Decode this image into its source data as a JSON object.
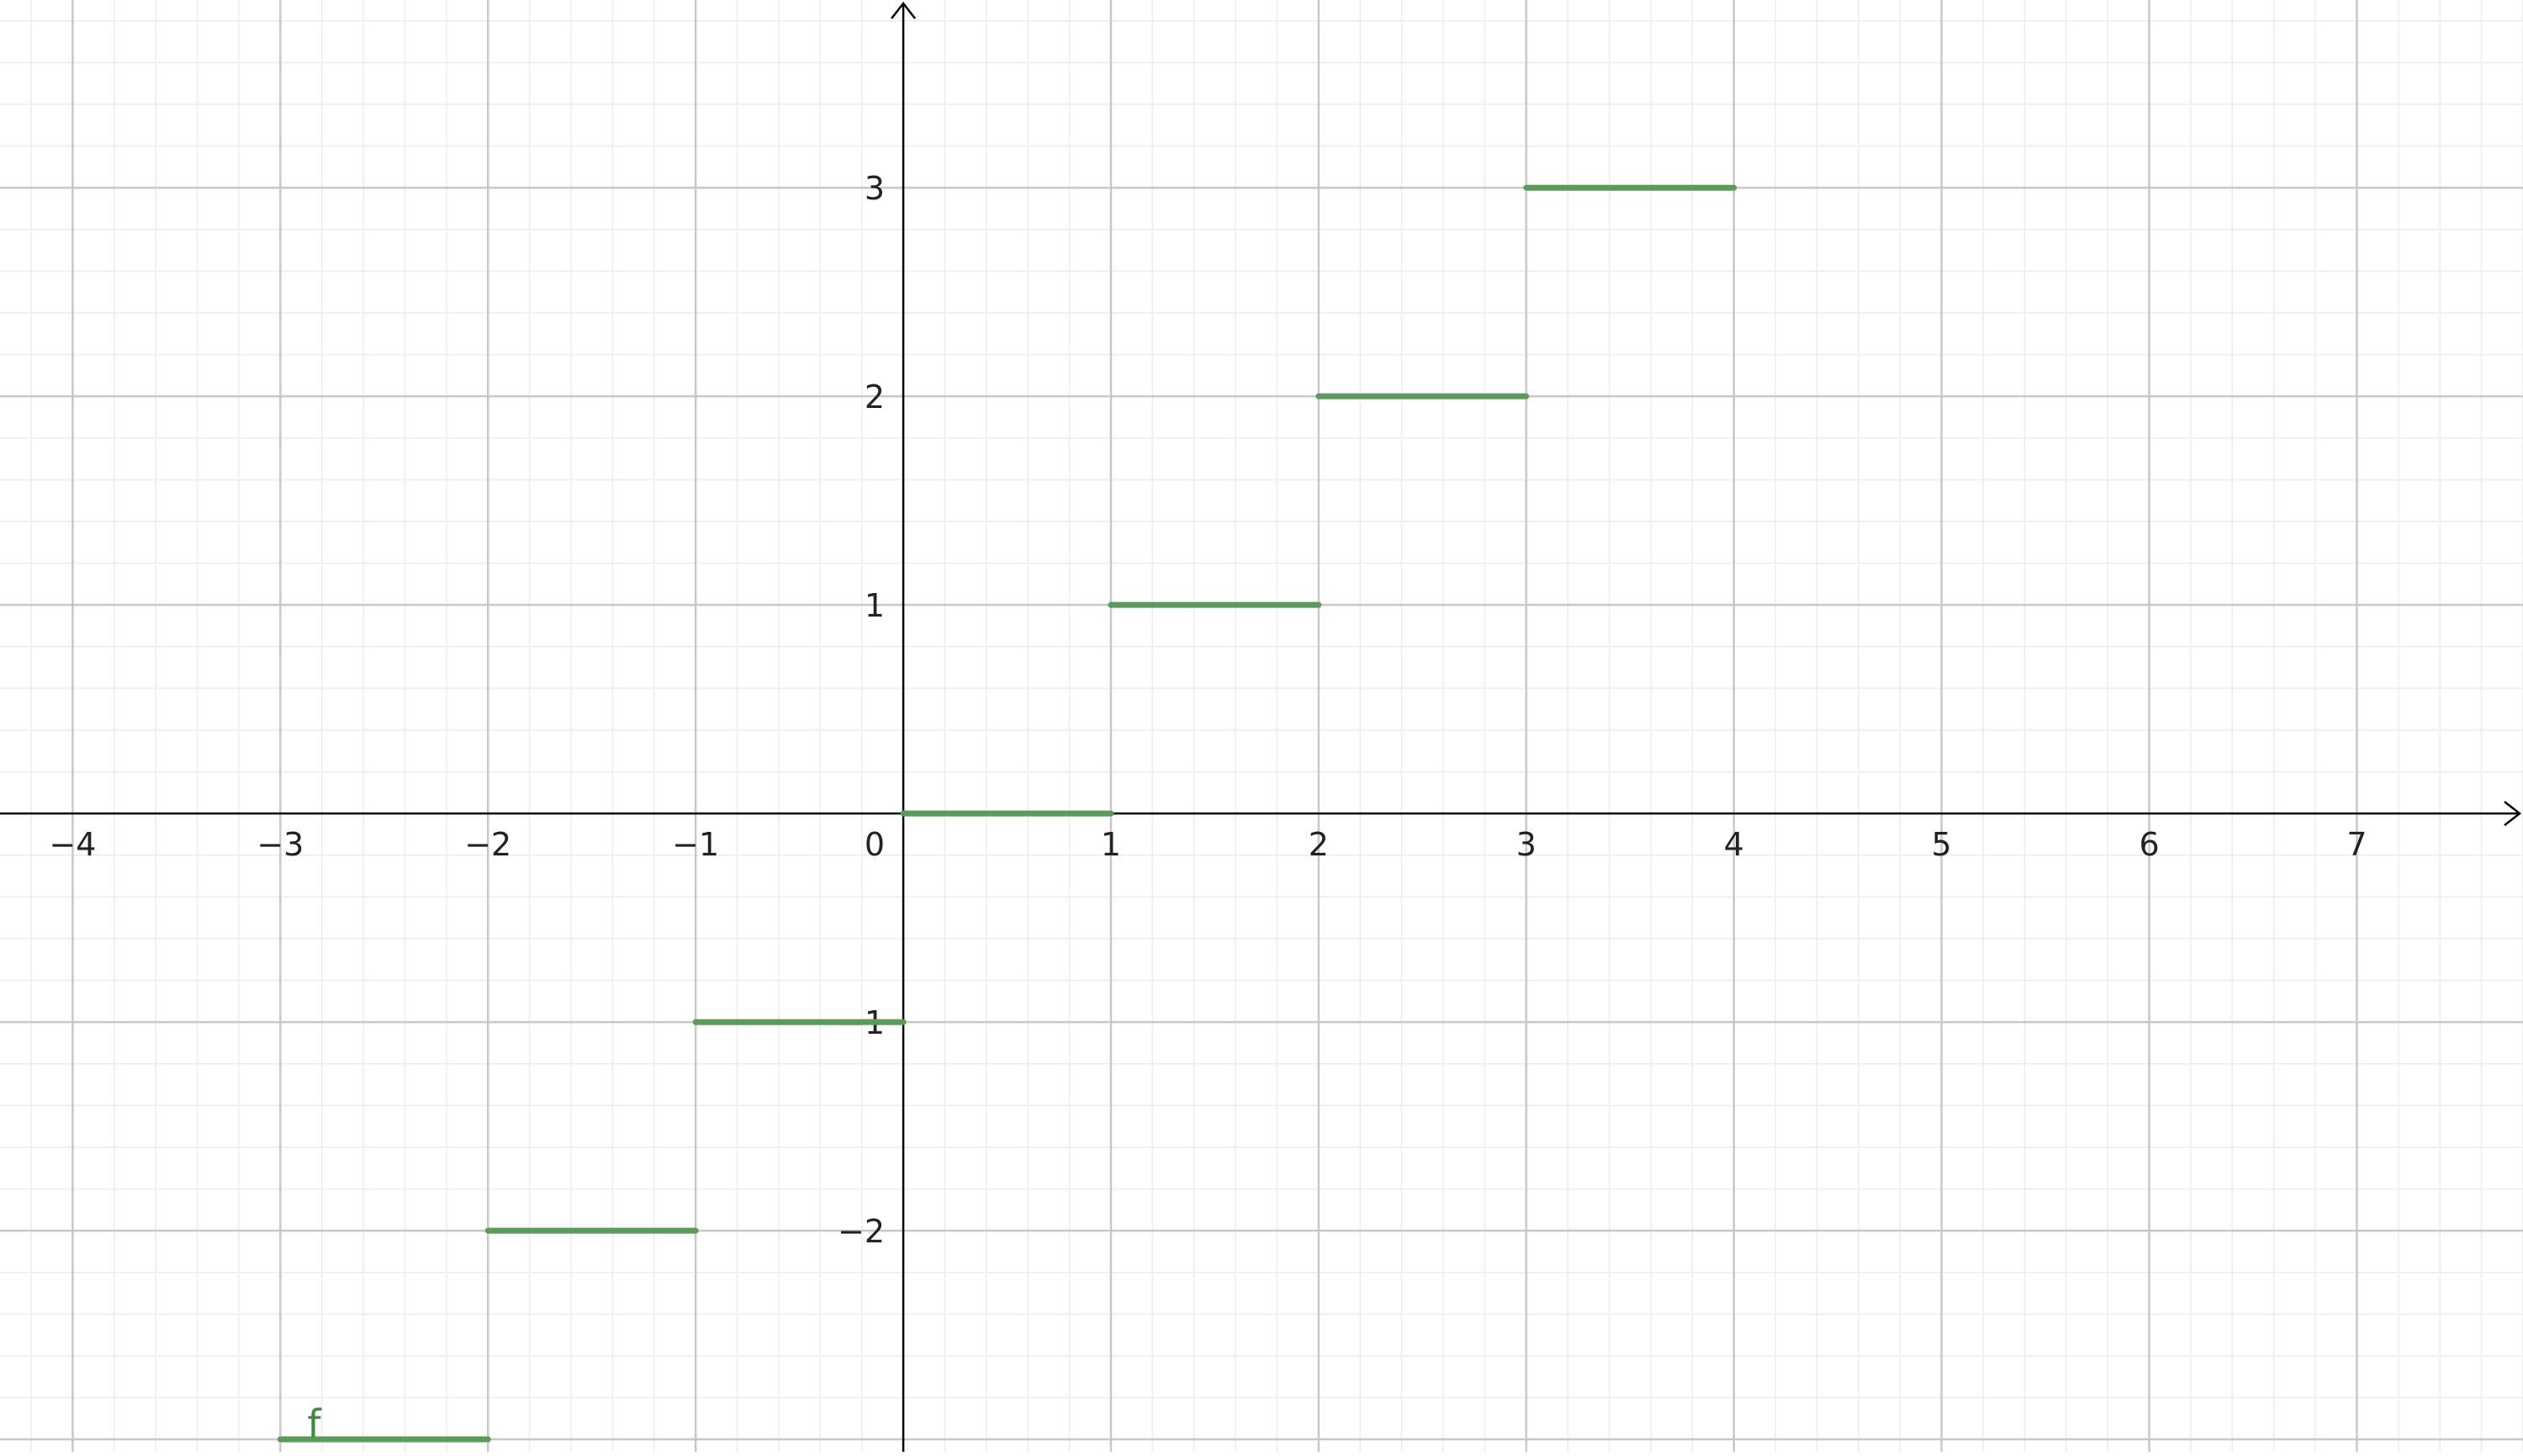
{
  "chart_data": {
    "type": "line",
    "title": "",
    "xlabel": "",
    "ylabel": "",
    "xlim": [
      -4.35,
      7.8
    ],
    "ylim": [
      -3.06,
      3.9
    ],
    "x_ticks": [
      -4,
      -3,
      -2,
      -1,
      1,
      2,
      3,
      4,
      5,
      6,
      7
    ],
    "y_ticks": [
      -2,
      -1,
      1,
      2,
      3
    ],
    "origin_label": "0",
    "grid": {
      "major": true,
      "minor": true,
      "minor_divisions": 5
    },
    "series": [
      {
        "name": "f",
        "segments": [
          {
            "x": [
              -3,
              -2
            ],
            "y": -3
          },
          {
            "x": [
              -2,
              -1
            ],
            "y": -2
          },
          {
            "x": [
              -1,
              0
            ],
            "y": -1
          },
          {
            "x": [
              0,
              1
            ],
            "y": 0
          },
          {
            "x": [
              1,
              2
            ],
            "y": 1
          },
          {
            "x": [
              2,
              3
            ],
            "y": 2
          },
          {
            "x": [
              3,
              4
            ],
            "y": 3
          }
        ]
      }
    ],
    "colors": {
      "series": "#5b9a5b",
      "label": "#3e8a3e",
      "axis": "#000000",
      "major_grid": "#c8c8c8",
      "minor_grid": "#ececec"
    }
  }
}
